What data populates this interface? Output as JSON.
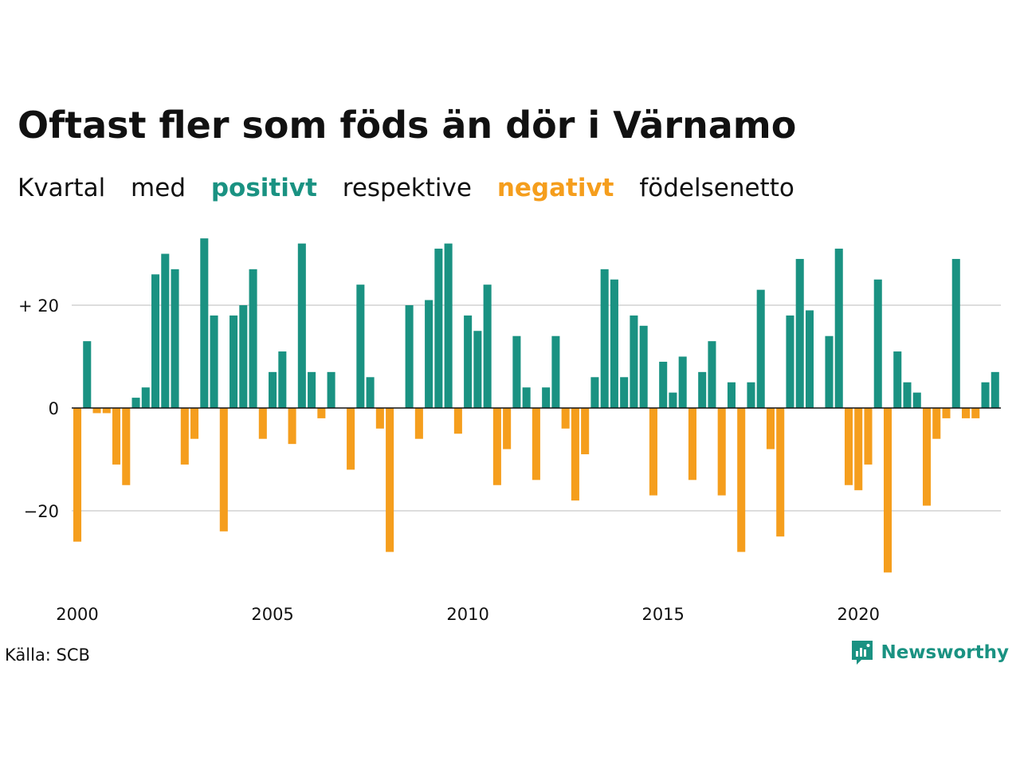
{
  "title": "Oftast fler som föds än dör i Värnamo",
  "subtitle": {
    "w1": "Kvartal",
    "w2": "med",
    "positive": "positivt",
    "w3": "respektive",
    "negative": "negativt",
    "w4": "födelsenetto"
  },
  "source": "Källa: SCB",
  "brand": {
    "name": "Newsworthy",
    "icon": "newsworthy-logo-icon"
  },
  "colors": {
    "positive": "#1a9282",
    "negative": "#f59e1d",
    "grid": "#dddddd",
    "text": "#111111"
  },
  "chart_data": {
    "type": "bar",
    "x_start": "2000 Q1",
    "frequency": "quarterly",
    "values": [
      -26,
      13,
      -1,
      -1,
      -11,
      -15,
      2,
      4,
      26,
      30,
      27,
      -11,
      -6,
      33,
      18,
      -24,
      18,
      20,
      27,
      -6,
      7,
      11,
      -7,
      32,
      7,
      -2,
      7,
      0,
      -12,
      24,
      6,
      -4,
      -28,
      0,
      20,
      -6,
      21,
      31,
      32,
      -5,
      18,
      15,
      24,
      -15,
      -8,
      14,
      4,
      -14,
      4,
      14,
      -4,
      -18,
      -9,
      6,
      27,
      25,
      6,
      18,
      16,
      -17,
      9,
      3,
      10,
      -14,
      7,
      13,
      -17,
      5,
      -28,
      5,
      23,
      -8,
      -25,
      18,
      29,
      19,
      0,
      14,
      31,
      -15,
      -16,
      -11,
      25,
      -32,
      11,
      5,
      3,
      -19,
      -6,
      -2,
      29,
      -2,
      -2,
      5,
      7
    ],
    "x_ticks": [
      "2000",
      "2005",
      "2010",
      "2015",
      "2020"
    ],
    "y_ticks": [
      {
        "value": 20,
        "label": "+ 20"
      },
      {
        "value": 0,
        "label": "0"
      },
      {
        "value": -20,
        "label": "−20"
      }
    ],
    "ylim": [
      -34,
      34
    ],
    "grid": true
  }
}
